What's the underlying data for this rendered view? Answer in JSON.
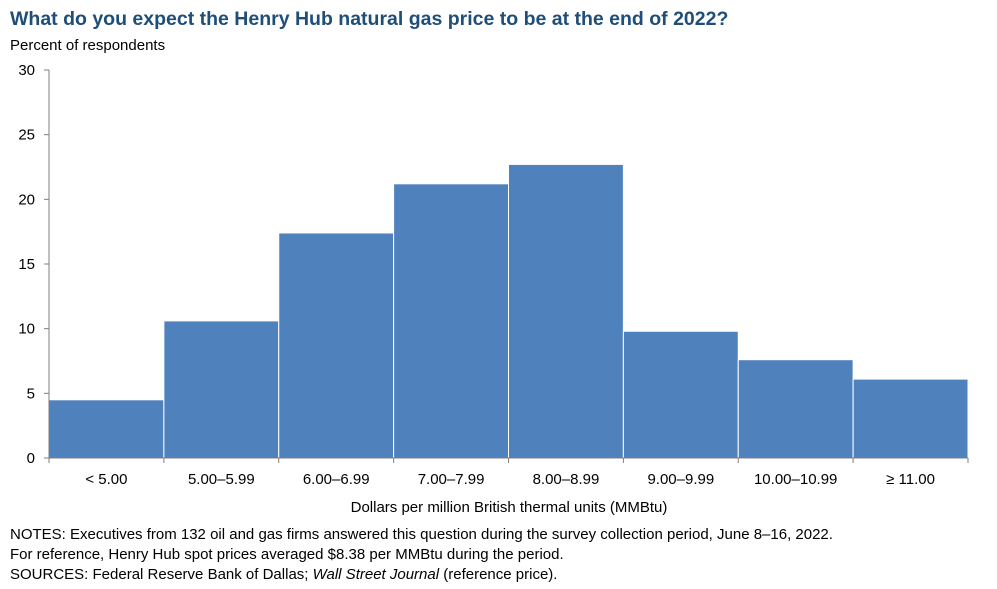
{
  "title": "What do you expect the Henry Hub natural gas price to be at the end of 2022?",
  "chart_data": {
    "type": "bar",
    "title": "What do you expect the Henry Hub natural gas price to be at the end of 2022?",
    "ylabel": "Percent of respondents",
    "xlabel": "Dollars per million British thermal units (MMBtu)",
    "categories": [
      "< 5.00",
      "5.00–5.99",
      "6.00–6.99",
      "7.00–7.99",
      "8.00–8.99",
      "9.00–9.99",
      "10.00–10.99",
      "≥ 11.00"
    ],
    "values": [
      4.5,
      10.6,
      17.4,
      21.2,
      22.7,
      9.8,
      7.6,
      6.1
    ],
    "ylim": [
      0,
      30
    ],
    "yticks": [
      0,
      5,
      10,
      15,
      20,
      25,
      30
    ],
    "grid": false,
    "legend": "none",
    "bar_color": "#4f81bd"
  },
  "notes": {
    "line1": "NOTES: Executives from 132 oil and gas firms answered this question during the survey collection period, June 8–16, 2022.",
    "line2": "For reference, Henry Hub spot prices averaged $8.38 per MMBtu during the period.",
    "sources_prefix": "SOURCES: Federal Reserve Bank of Dallas; ",
    "sources_italic": "Wall Street Journal",
    "sources_suffix": " (reference price)."
  }
}
